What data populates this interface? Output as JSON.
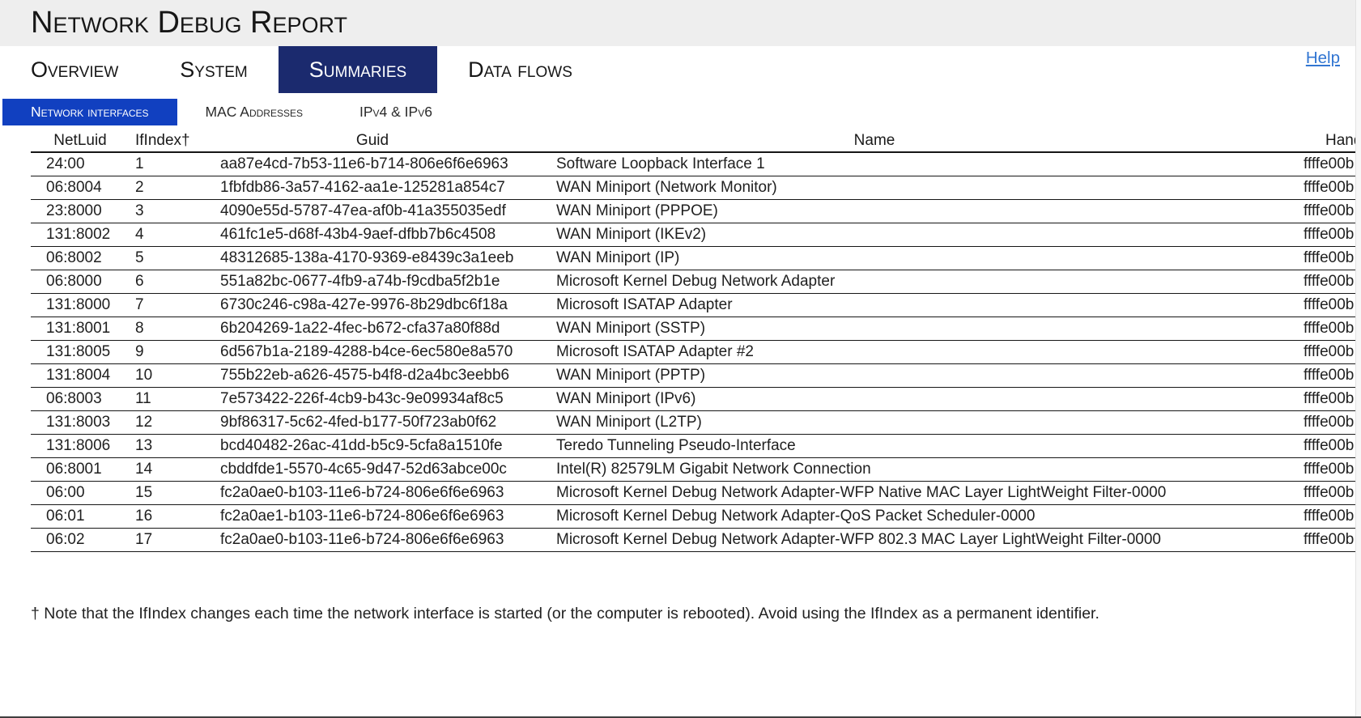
{
  "title": "Network Debug Report",
  "help_label": "Help",
  "tabs": [
    {
      "label": "Overview",
      "selected": false
    },
    {
      "label": "System",
      "selected": false
    },
    {
      "label": "Summaries",
      "selected": true
    },
    {
      "label": "Data flows",
      "selected": false
    }
  ],
  "subtabs": [
    {
      "label": "Network interfaces",
      "selected": true
    },
    {
      "label": "MAC Addresses",
      "selected": false
    },
    {
      "label": "IPv4 & IPv6",
      "selected": false
    }
  ],
  "table": {
    "columns": [
      "NetLuid",
      "IfIndex†",
      "Guid",
      "Name",
      "Handle"
    ],
    "rows": [
      [
        "24:00",
        "1",
        "aa87e4cd-7b53-11e6-b714-806e6f6e6963",
        "Software Loopback Interface 1",
        "ffffe00b"
      ],
      [
        "06:8004",
        "2",
        "1fbfdb86-3a57-4162-aa1e-125281a854c7",
        "WAN Miniport (Network Monitor)",
        "ffffe00b"
      ],
      [
        "23:8000",
        "3",
        "4090e55d-5787-47ea-af0b-41a355035edf",
        "WAN Miniport (PPPOE)",
        "ffffe00b"
      ],
      [
        "131:8002",
        "4",
        "461fc1e5-d68f-43b4-9aef-dfbb7b6c4508",
        "WAN Miniport (IKEv2)",
        "ffffe00b"
      ],
      [
        "06:8002",
        "5",
        "48312685-138a-4170-9369-e8439c3a1eeb",
        "WAN Miniport (IP)",
        "ffffe00b"
      ],
      [
        "06:8000",
        "6",
        "551a82bc-0677-4fb9-a74b-f9cdba5f2b1e",
        "Microsoft Kernel Debug Network Adapter",
        "ffffe00b"
      ],
      [
        "131:8000",
        "7",
        "6730c246-c98a-427e-9976-8b29dbc6f18a",
        "Microsoft ISATAP Adapter",
        "ffffe00b"
      ],
      [
        "131:8001",
        "8",
        "6b204269-1a22-4fec-b672-cfa37a80f88d",
        "WAN Miniport (SSTP)",
        "ffffe00b"
      ],
      [
        "131:8005",
        "9",
        "6d567b1a-2189-4288-b4ce-6ec580e8a570",
        "Microsoft ISATAP Adapter #2",
        "ffffe00b"
      ],
      [
        "131:8004",
        "10",
        "755b22eb-a626-4575-b4f8-d2a4bc3eebb6",
        "WAN Miniport (PPTP)",
        "ffffe00b"
      ],
      [
        "06:8003",
        "11",
        "7e573422-226f-4cb9-b43c-9e09934af8c5",
        "WAN Miniport (IPv6)",
        "ffffe00b"
      ],
      [
        "131:8003",
        "12",
        "9bf86317-5c62-4fed-b177-50f723ab0f62",
        "WAN Miniport (L2TP)",
        "ffffe00b"
      ],
      [
        "131:8006",
        "13",
        "bcd40482-26ac-41dd-b5c9-5cfa8a1510fe",
        "Teredo Tunneling Pseudo-Interface",
        "ffffe00b"
      ],
      [
        "06:8001",
        "14",
        "cbddfde1-5570-4c65-9d47-52d63abce00c",
        "Intel(R) 82579LM Gigabit Network Connection",
        "ffffe00b"
      ],
      [
        "06:00",
        "15",
        "fc2a0ae0-b103-11e6-b724-806e6f6e6963",
        "Microsoft Kernel Debug Network Adapter-WFP Native MAC Layer LightWeight Filter-0000",
        "ffffe00b"
      ],
      [
        "06:01",
        "16",
        "fc2a0ae1-b103-11e6-b724-806e6f6e6963",
        "Microsoft Kernel Debug Network Adapter-QoS Packet Scheduler-0000",
        "ffffe00b"
      ],
      [
        "06:02",
        "17",
        "fc2a0ae0-b103-11e6-b724-806e6f6e6963",
        "Microsoft Kernel Debug Network Adapter-WFP 802.3 MAC Layer LightWeight Filter-0000",
        "ffffe00b"
      ]
    ]
  },
  "footnote": "† Note that the IfIndex changes each time the network interface is started (or the computer is rebooted). Avoid using the IfIndex as a permanent identifier.",
  "colors": {
    "band_background": "#eeeeee",
    "tab_selected": "#1b2a6e",
    "subtab_selected": "#1140c0",
    "link": "#3276d2"
  }
}
